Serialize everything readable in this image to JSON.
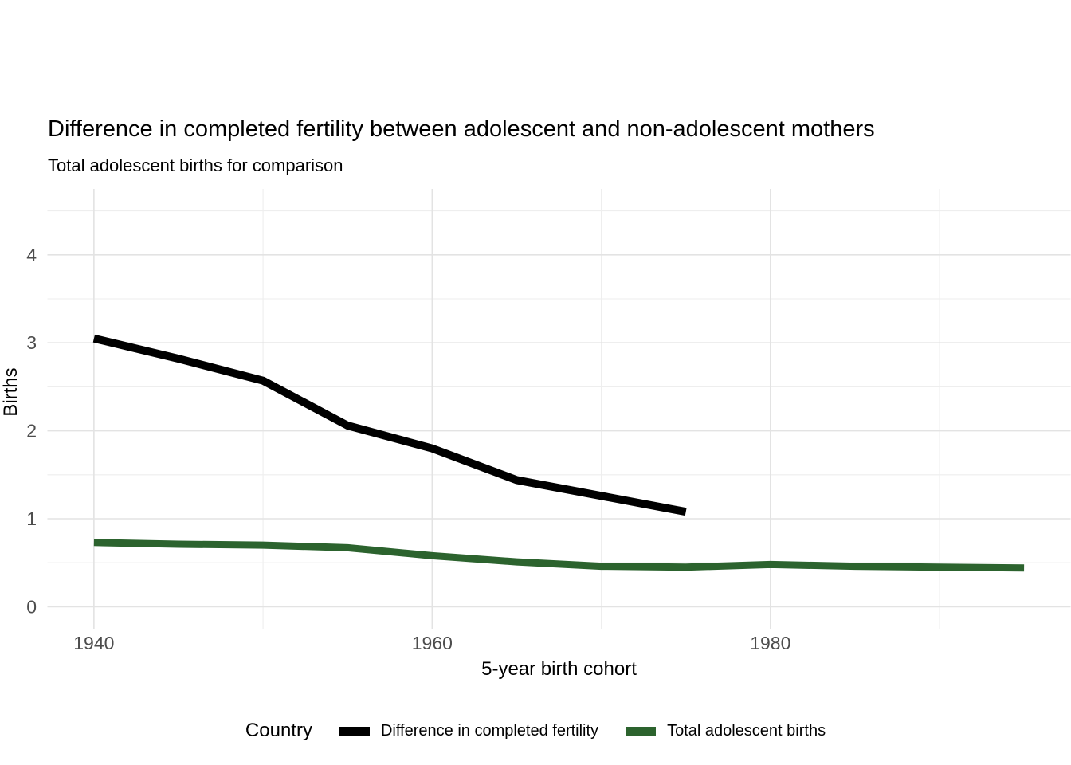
{
  "chart": {
    "title": "Difference in completed fertility between adolescent and non-adolescent mothers",
    "subtitle": "Total adolescent births for comparison",
    "x_axis": {
      "label": "5-year birth cohort",
      "ticks": [
        "1940",
        "1960",
        "1980"
      ]
    },
    "y_axis": {
      "label": "Births",
      "ticks": [
        "0",
        "1",
        "2",
        "3",
        "4"
      ]
    },
    "legend": {
      "title": "Country",
      "items": [
        {
          "label": "Difference in completed fertility",
          "color": "#000000"
        },
        {
          "label": "Total adolescent births",
          "color": "#2c632e"
        }
      ]
    }
  },
  "chart_data": {
    "type": "line",
    "title": "Difference in completed fertility between adolescent and non-adolescent mothers",
    "subtitle": "Total adolescent births for comparison",
    "xlabel": "5-year birth cohort",
    "ylabel": "Births",
    "x": [
      1940,
      1945,
      1950,
      1955,
      1960,
      1965,
      1970,
      1975,
      1980,
      1985,
      1990,
      1995
    ],
    "series": [
      {
        "name": "Difference in completed fertility",
        "color": "#000000",
        "values": [
          3.05,
          2.82,
          2.57,
          2.06,
          1.8,
          1.44,
          1.26,
          1.08,
          null,
          null,
          null,
          null
        ]
      },
      {
        "name": "Total adolescent births",
        "color": "#2c632e",
        "values": [
          0.73,
          0.71,
          0.7,
          0.67,
          0.58,
          0.51,
          0.46,
          0.45,
          0.48,
          0.46,
          0.45,
          0.44
        ]
      }
    ],
    "xlim": [
      1937.25,
      1997.75
    ],
    "ylim": [
      -0.25,
      4.75
    ],
    "x_major": [
      1940,
      1960,
      1980
    ],
    "x_minor": [
      1950,
      1970,
      1990
    ],
    "y_major": [
      0,
      1,
      2,
      3,
      4
    ],
    "y_minor": [
      0.5,
      1.5,
      2.5,
      3.5,
      4.5
    ],
    "grid": true,
    "legend_position": "bottom"
  },
  "colors": {
    "grid_major": "#e3e3e3",
    "grid_minor": "#eeeeee",
    "axis_text": "#4d4d4d",
    "background": "#ffffff"
  }
}
